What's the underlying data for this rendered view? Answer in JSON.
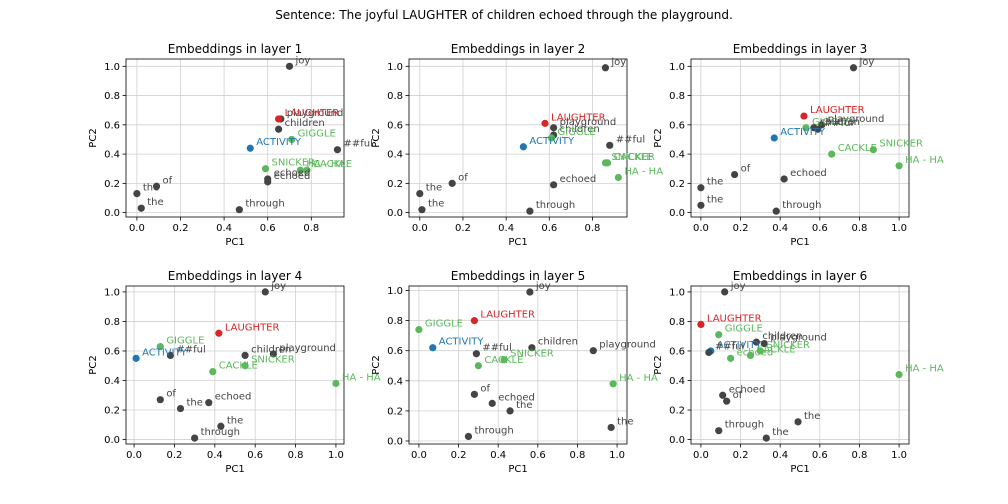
{
  "figure": {
    "suptitle": "Sentence: The joyful LAUGHTER of children echoed through the playground."
  },
  "colors": {
    "target": "#d62728",
    "related": "#5cb85c",
    "activity": "#1f77b4",
    "other": "#444444",
    "grid": "#d0d0d0"
  },
  "chart_data": [
    {
      "type": "scatter",
      "title": "Embeddings in layer 1",
      "xlabel": "PC1",
      "ylabel": "PC2",
      "xlim": [
        -0.05,
        0.95
      ],
      "ylim": [
        -0.03,
        1.05
      ],
      "xticks": [
        0.0,
        0.2,
        0.4,
        0.6,
        0.8
      ],
      "xtick_labels": [
        "0.0",
        "0.2",
        "0.4",
        "0.6",
        "0.8"
      ],
      "yticks": [
        0.0,
        0.2,
        0.4,
        0.6,
        0.8,
        1.0
      ],
      "ytick_labels": [
        "0.0",
        "0.2",
        "0.4",
        "0.6",
        "0.8",
        "1.0"
      ],
      "grid": true,
      "points": [
        {
          "label": "joy",
          "x": 0.7,
          "y": 1.0,
          "group": "other"
        },
        {
          "label": "playground",
          "x": 0.66,
          "y": 0.64,
          "group": "other"
        },
        {
          "label": "LAUGHTER",
          "x": 0.65,
          "y": 0.64,
          "group": "target"
        },
        {
          "label": "children",
          "x": 0.65,
          "y": 0.57,
          "group": "other"
        },
        {
          "label": "GIGGLE",
          "x": 0.71,
          "y": 0.5,
          "group": "related"
        },
        {
          "label": "ACTIVITY",
          "x": 0.52,
          "y": 0.44,
          "group": "activity"
        },
        {
          "label": "##ful",
          "x": 0.92,
          "y": 0.43,
          "group": "other"
        },
        {
          "label": "SNICKER",
          "x": 0.59,
          "y": 0.3,
          "group": "related"
        },
        {
          "label": "HA - HA",
          "x": 0.75,
          "y": 0.29,
          "group": "related"
        },
        {
          "label": "CACKLE",
          "x": 0.78,
          "y": 0.29,
          "group": "related"
        },
        {
          "label": "echoed",
          "x": 0.6,
          "y": 0.23,
          "group": "other"
        },
        {
          "label": "echoed",
          "x": 0.6,
          "y": 0.21,
          "group": "other"
        },
        {
          "label": "of",
          "x": 0.09,
          "y": 0.18,
          "group": "other"
        },
        {
          "label": "the",
          "x": 0.0,
          "y": 0.13,
          "group": "other"
        },
        {
          "label": "the",
          "x": 0.02,
          "y": 0.03,
          "group": "other"
        },
        {
          "label": "through",
          "x": 0.47,
          "y": 0.02,
          "group": "other"
        }
      ]
    },
    {
      "type": "scatter",
      "title": "Embeddings in layer 2",
      "xlabel": "PC1",
      "ylabel": "PC2",
      "xlim": [
        -0.05,
        0.96
      ],
      "ylim": [
        -0.03,
        1.05
      ],
      "xticks": [
        0.0,
        0.2,
        0.4,
        0.6,
        0.8
      ],
      "xtick_labels": [
        "0.0",
        "0.2",
        "0.4",
        "0.6",
        "0.8"
      ],
      "yticks": [
        0.0,
        0.2,
        0.4,
        0.6,
        0.8,
        1.0
      ],
      "ytick_labels": [
        "0.0",
        "0.2",
        "0.4",
        "0.6",
        "0.8",
        "1.0"
      ],
      "grid": true,
      "points": [
        {
          "label": "joy",
          "x": 0.86,
          "y": 0.99,
          "group": "other"
        },
        {
          "label": "LAUGHTER",
          "x": 0.58,
          "y": 0.61,
          "group": "target"
        },
        {
          "label": "playground",
          "x": 0.62,
          "y": 0.58,
          "group": "other"
        },
        {
          "label": "children",
          "x": 0.62,
          "y": 0.53,
          "group": "other"
        },
        {
          "label": "GIGGLE",
          "x": 0.61,
          "y": 0.51,
          "group": "related"
        },
        {
          "label": "ACTIVITY",
          "x": 0.48,
          "y": 0.45,
          "group": "activity"
        },
        {
          "label": "##ful",
          "x": 0.88,
          "y": 0.46,
          "group": "other"
        },
        {
          "label": "SNICKER",
          "x": 0.86,
          "y": 0.34,
          "group": "related"
        },
        {
          "label": "CACKLE",
          "x": 0.87,
          "y": 0.34,
          "group": "related"
        },
        {
          "label": "HA - HA",
          "x": 0.92,
          "y": 0.24,
          "group": "related"
        },
        {
          "label": "of",
          "x": 0.15,
          "y": 0.2,
          "group": "other"
        },
        {
          "label": "echoed",
          "x": 0.62,
          "y": 0.19,
          "group": "other"
        },
        {
          "label": "the",
          "x": 0.0,
          "y": 0.13,
          "group": "other"
        },
        {
          "label": "the",
          "x": 0.01,
          "y": 0.02,
          "group": "other"
        },
        {
          "label": "through",
          "x": 0.51,
          "y": 0.01,
          "group": "other"
        }
      ]
    },
    {
      "type": "scatter",
      "title": "Embeddings in layer 3",
      "xlabel": "PC1",
      "ylabel": "PC2",
      "xlim": [
        -0.05,
        1.05
      ],
      "ylim": [
        -0.03,
        1.05
      ],
      "xticks": [
        0.0,
        0.2,
        0.4,
        0.6,
        0.8,
        1.0
      ],
      "xtick_labels": [
        "0.0",
        "0.2",
        "0.4",
        "0.6",
        "0.8",
        "1.0"
      ],
      "yticks": [
        0.0,
        0.2,
        0.4,
        0.6,
        0.8,
        1.0
      ],
      "ytick_labels": [
        "0.0",
        "0.2",
        "0.4",
        "0.6",
        "0.8",
        "1.0"
      ],
      "grid": true,
      "points": [
        {
          "label": "joy",
          "x": 0.77,
          "y": 0.99,
          "group": "other"
        },
        {
          "label": "LAUGHTER",
          "x": 0.52,
          "y": 0.66,
          "group": "target"
        },
        {
          "label": "playground",
          "x": 0.61,
          "y": 0.6,
          "group": "other"
        },
        {
          "label": "GIGGLE",
          "x": 0.53,
          "y": 0.58,
          "group": "related"
        },
        {
          "label": "children",
          "x": 0.57,
          "y": 0.58,
          "group": "other"
        },
        {
          "label": "##ful",
          "x": 0.59,
          "y": 0.57,
          "group": "other"
        },
        {
          "label": "ACTIVITY",
          "x": 0.37,
          "y": 0.51,
          "group": "activity"
        },
        {
          "label": "SNICKER",
          "x": 0.87,
          "y": 0.43,
          "group": "related"
        },
        {
          "label": "CACKLE",
          "x": 0.66,
          "y": 0.4,
          "group": "related"
        },
        {
          "label": "HA - HA",
          "x": 1.0,
          "y": 0.32,
          "group": "related"
        },
        {
          "label": "of",
          "x": 0.17,
          "y": 0.26,
          "group": "other"
        },
        {
          "label": "echoed",
          "x": 0.42,
          "y": 0.23,
          "group": "other"
        },
        {
          "label": "the",
          "x": 0.0,
          "y": 0.17,
          "group": "other"
        },
        {
          "label": "the",
          "x": 0.0,
          "y": 0.05,
          "group": "other"
        },
        {
          "label": "through",
          "x": 0.38,
          "y": 0.01,
          "group": "other"
        }
      ]
    },
    {
      "type": "scatter",
      "title": "Embeddings in layer 4",
      "xlabel": "PC1",
      "ylabel": "PC2",
      "xlim": [
        -0.04,
        1.04
      ],
      "ylim": [
        -0.03,
        1.04
      ],
      "xticks": [
        0.0,
        0.2,
        0.4,
        0.6,
        0.8,
        1.0
      ],
      "xtick_labels": [
        "0.0",
        "0.2",
        "0.4",
        "0.6",
        "0.8",
        "1.0"
      ],
      "yticks": [
        0.0,
        0.2,
        0.4,
        0.6,
        0.8,
        1.0
      ],
      "ytick_labels": [
        "0.0",
        "0.2",
        "0.4",
        "0.6",
        "0.8",
        "1.0"
      ],
      "grid": true,
      "points": [
        {
          "label": "joy",
          "x": 0.65,
          "y": 1.0,
          "group": "other"
        },
        {
          "label": "LAUGHTER",
          "x": 0.42,
          "y": 0.72,
          "group": "target"
        },
        {
          "label": "GIGGLE",
          "x": 0.13,
          "y": 0.63,
          "group": "related"
        },
        {
          "label": "##ful",
          "x": 0.18,
          "y": 0.57,
          "group": "other"
        },
        {
          "label": "ACTIVITY",
          "x": 0.01,
          "y": 0.55,
          "group": "activity"
        },
        {
          "label": "children",
          "x": 0.55,
          "y": 0.57,
          "group": "other"
        },
        {
          "label": "playground",
          "x": 0.69,
          "y": 0.58,
          "group": "other"
        },
        {
          "label": "SNICKER",
          "x": 0.55,
          "y": 0.5,
          "group": "related"
        },
        {
          "label": "CACKLE",
          "x": 0.39,
          "y": 0.46,
          "group": "related"
        },
        {
          "label": "HA - HA",
          "x": 1.0,
          "y": 0.38,
          "group": "related"
        },
        {
          "label": "of",
          "x": 0.13,
          "y": 0.27,
          "group": "other"
        },
        {
          "label": "echoed",
          "x": 0.37,
          "y": 0.25,
          "group": "other"
        },
        {
          "label": "the",
          "x": 0.23,
          "y": 0.21,
          "group": "other"
        },
        {
          "label": "the",
          "x": 0.43,
          "y": 0.09,
          "group": "other"
        },
        {
          "label": "through",
          "x": 0.3,
          "y": 0.01,
          "group": "other"
        }
      ]
    },
    {
      "type": "scatter",
      "title": "Embeddings in layer 5",
      "xlabel": "PC1",
      "ylabel": "PC2",
      "xlim": [
        -0.05,
        1.05
      ],
      "ylim": [
        -0.02,
        1.03
      ],
      "xticks": [
        0.0,
        0.2,
        0.4,
        0.6,
        0.8,
        1.0
      ],
      "xtick_labels": [
        "0.0",
        "0.2",
        "0.4",
        "0.6",
        "0.8",
        "1.0"
      ],
      "yticks": [
        0.0,
        0.2,
        0.4,
        0.6,
        0.8,
        1.0
      ],
      "ytick_labels": [
        "0.0",
        "0.2",
        "0.4",
        "0.6",
        "0.8",
        "1.0"
      ],
      "grid": true,
      "points": [
        {
          "label": "joy",
          "x": 0.56,
          "y": 0.99,
          "group": "other"
        },
        {
          "label": "LAUGHTER",
          "x": 0.28,
          "y": 0.8,
          "group": "target"
        },
        {
          "label": "GIGGLE",
          "x": 0.0,
          "y": 0.74,
          "group": "related"
        },
        {
          "label": "ACTIVITY",
          "x": 0.07,
          "y": 0.62,
          "group": "activity"
        },
        {
          "label": "##ful",
          "x": 0.29,
          "y": 0.58,
          "group": "other"
        },
        {
          "label": "children",
          "x": 0.57,
          "y": 0.62,
          "group": "other"
        },
        {
          "label": "playground",
          "x": 0.88,
          "y": 0.6,
          "group": "other"
        },
        {
          "label": "SNICKER",
          "x": 0.43,
          "y": 0.54,
          "group": "related"
        },
        {
          "label": "CACKLE",
          "x": 0.3,
          "y": 0.5,
          "group": "related"
        },
        {
          "label": "HA - HA",
          "x": 0.98,
          "y": 0.38,
          "group": "related"
        },
        {
          "label": "of",
          "x": 0.28,
          "y": 0.31,
          "group": "other"
        },
        {
          "label": "echoed",
          "x": 0.37,
          "y": 0.25,
          "group": "other"
        },
        {
          "label": "the",
          "x": 0.46,
          "y": 0.2,
          "group": "other"
        },
        {
          "label": "the",
          "x": 0.97,
          "y": 0.09,
          "group": "other"
        },
        {
          "label": "through",
          "x": 0.25,
          "y": 0.03,
          "group": "other"
        }
      ]
    },
    {
      "type": "scatter",
      "title": "Embeddings in layer 6",
      "xlabel": "PC1",
      "ylabel": "PC2",
      "xlim": [
        -0.05,
        1.05
      ],
      "ylim": [
        -0.03,
        1.04
      ],
      "xticks": [
        0.0,
        0.2,
        0.4,
        0.6,
        0.8,
        1.0
      ],
      "xtick_labels": [
        "0.0",
        "0.2",
        "0.4",
        "0.6",
        "0.8",
        "1.0"
      ],
      "yticks": [
        0.0,
        0.2,
        0.4,
        0.6,
        0.8,
        1.0
      ],
      "ytick_labels": [
        "0.0",
        "0.2",
        "0.4",
        "0.6",
        "0.8",
        "1.0"
      ],
      "grid": true,
      "points": [
        {
          "label": "joy",
          "x": 0.12,
          "y": 1.0,
          "group": "other"
        },
        {
          "label": "LAUGHTER",
          "x": 0.0,
          "y": 0.78,
          "group": "target"
        },
        {
          "label": "GIGGLE",
          "x": 0.09,
          "y": 0.71,
          "group": "related"
        },
        {
          "label": "children",
          "x": 0.28,
          "y": 0.66,
          "group": "other"
        },
        {
          "label": "playground",
          "x": 0.32,
          "y": 0.65,
          "group": "other"
        },
        {
          "label": "ACTIVITY",
          "x": 0.05,
          "y": 0.6,
          "group": "activity"
        },
        {
          "label": "##ful",
          "x": 0.04,
          "y": 0.59,
          "group": "other"
        },
        {
          "label": "CACKLE",
          "x": 0.25,
          "y": 0.57,
          "group": "related"
        },
        {
          "label": "SNICKER",
          "x": 0.3,
          "y": 0.6,
          "group": "related"
        },
        {
          "label": "echoed",
          "x": 0.15,
          "y": 0.55,
          "group": "related"
        },
        {
          "label": "HA - HA",
          "x": 1.0,
          "y": 0.44,
          "group": "related"
        },
        {
          "label": "echoed",
          "x": 0.11,
          "y": 0.3,
          "group": "other"
        },
        {
          "label": "of",
          "x": 0.13,
          "y": 0.26,
          "group": "other"
        },
        {
          "label": "the",
          "x": 0.49,
          "y": 0.12,
          "group": "other"
        },
        {
          "label": "through",
          "x": 0.09,
          "y": 0.06,
          "group": "other"
        },
        {
          "label": "the",
          "x": 0.33,
          "y": 0.01,
          "group": "other"
        }
      ]
    }
  ]
}
